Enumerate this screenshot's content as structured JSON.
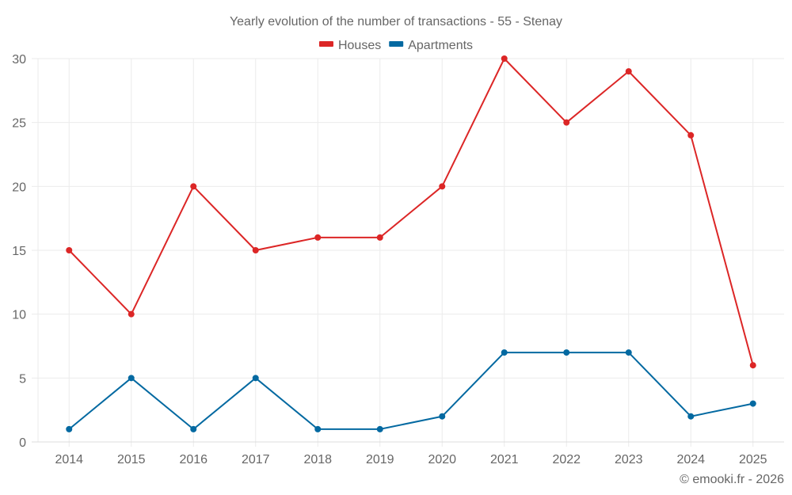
{
  "chart_data": {
    "type": "line",
    "title": "Yearly evolution of the number of transactions - 55 - Stenay",
    "xlabel": "",
    "ylabel": "",
    "categories": [
      "2014",
      "2015",
      "2016",
      "2017",
      "2018",
      "2019",
      "2020",
      "2021",
      "2022",
      "2023",
      "2024",
      "2025"
    ],
    "series": [
      {
        "name": "Houses",
        "color": "#dc2626",
        "values": [
          15,
          10,
          20,
          15,
          16,
          16,
          20,
          30,
          25,
          29,
          24,
          6
        ]
      },
      {
        "name": "Apartments",
        "color": "#0369a1",
        "values": [
          1,
          5,
          1,
          5,
          1,
          1,
          2,
          7,
          7,
          7,
          2,
          3
        ]
      }
    ],
    "ylim": [
      0,
      30
    ],
    "yticks": [
      0,
      5,
      10,
      15,
      20,
      25,
      30
    ],
    "grid": true,
    "legend_position": "top-center"
  },
  "credit": "© emooki.fr - 2026"
}
